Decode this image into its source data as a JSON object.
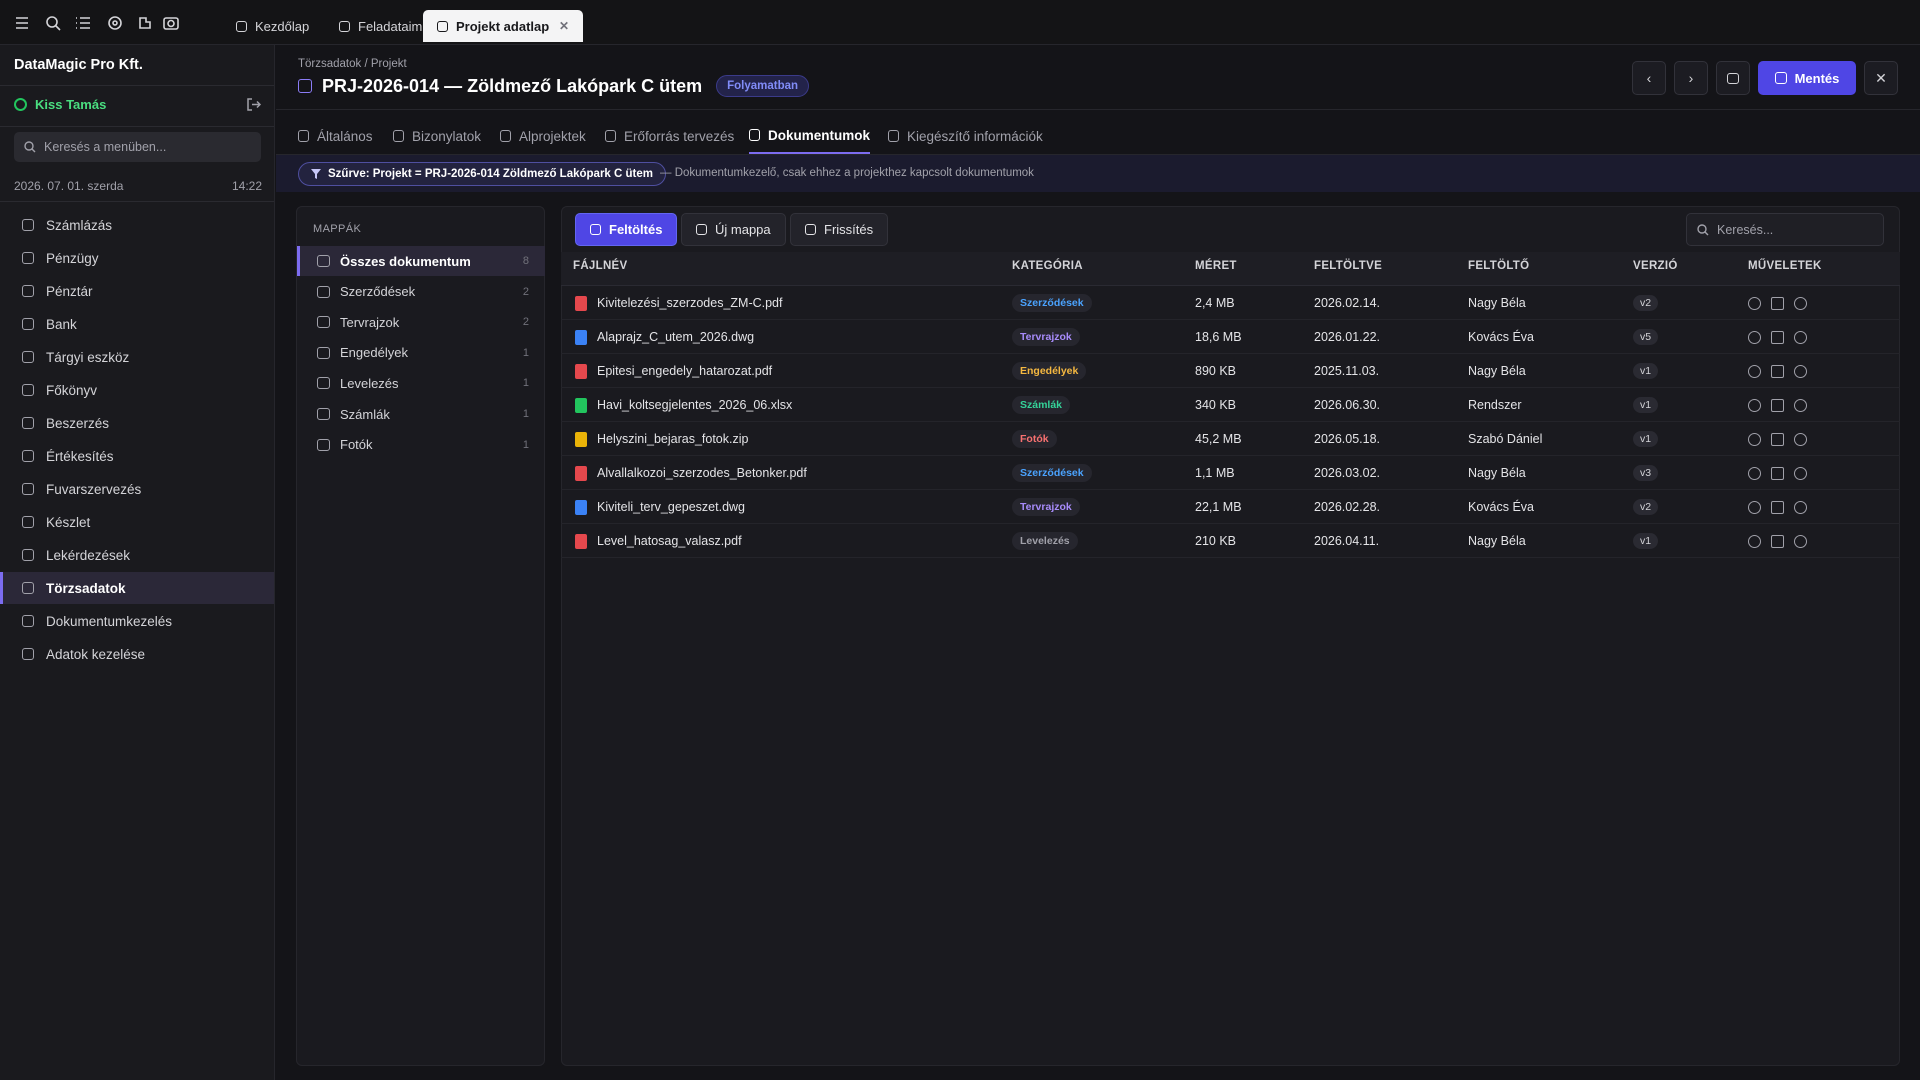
{
  "topbar": {
    "tabs": [
      {
        "label": "Kezdőlap",
        "active": false
      },
      {
        "label": "Feladataim",
        "active": false
      },
      {
        "label": "Projekt adatlap",
        "active": true
      }
    ]
  },
  "sidebar": {
    "company": "DataMagic Pro Kft.",
    "user": "Kiss Tamás",
    "search_placeholder": "Keresés a menüben...",
    "date": "2026. 07. 01. szerda",
    "time": "14:22",
    "menu": [
      {
        "label": "Számlázás",
        "active": false
      },
      {
        "label": "Pénzügy",
        "active": false
      },
      {
        "label": "Pénztár",
        "active": false
      },
      {
        "label": "Bank",
        "active": false
      },
      {
        "label": "Tárgyi eszköz",
        "active": false
      },
      {
        "label": "Főkönyv",
        "active": false
      },
      {
        "label": "Beszerzés",
        "active": false
      },
      {
        "label": "Értékesítés",
        "active": false
      },
      {
        "label": "Fuvarszervezés",
        "active": false
      },
      {
        "label": "Készlet",
        "active": false
      },
      {
        "label": "Lekérdezések",
        "active": false
      },
      {
        "label": "Törzsadatok",
        "active": true
      },
      {
        "label": "Dokumentumkezelés",
        "active": false
      },
      {
        "label": "Adatok kezelése",
        "active": false
      }
    ]
  },
  "header": {
    "breadcrumb": "Törzsadatok / Projekt",
    "title": "PRJ-2026-014 — Zöldmező Lakópark C ütem",
    "status": "Folyamatban",
    "save": "Mentés"
  },
  "tabs": [
    {
      "label": "Általános",
      "active": false
    },
    {
      "label": "Bizonylatok",
      "active": false
    },
    {
      "label": "Alprojektek",
      "active": false
    },
    {
      "label": "Erőforrás tervezés",
      "active": false
    },
    {
      "label": "Dokumentumok",
      "active": true
    },
    {
      "label": "Kiegészítő információk",
      "active": false
    }
  ],
  "filter": {
    "chip": "Szűrve: Projekt = PRJ-2026-014 Zöldmező Lakópark C ütem",
    "note": "— Dokumentumkezelő, csak ehhez a projekthez kapcsolt dokumentumok"
  },
  "folders": {
    "heading": "MAPPÁK",
    "items": [
      {
        "name": "Összes dokumentum",
        "count": 8,
        "active": true
      },
      {
        "name": "Szerződések",
        "count": 2,
        "active": false
      },
      {
        "name": "Tervrajzok",
        "count": 2,
        "active": false
      },
      {
        "name": "Engedélyek",
        "count": 1,
        "active": false
      },
      {
        "name": "Levelezés",
        "count": 1,
        "active": false
      },
      {
        "name": "Számlák",
        "count": 1,
        "active": false
      },
      {
        "name": "Fotók",
        "count": 1,
        "active": false
      }
    ]
  },
  "toolbar": {
    "buttons": [
      "Feltöltés",
      "Új mappa",
      "Frissítés"
    ],
    "search_placeholder": "Keresés..."
  },
  "table": {
    "columns": [
      "FÁJLNÉV",
      "KATEGÓRIA",
      "MÉRET",
      "FELTÖLTVE",
      "FELTÖLTŐ",
      "VERZIÓ",
      "MŰVELETEK"
    ],
    "rows": [
      {
        "file": "Kivitelezési_szerzodes_ZM-C.pdf",
        "icon_color": "#e5484d",
        "category": "Szerződések",
        "category_color": "#4aa3ff",
        "size": "2,4 MB",
        "uploaded": "2026.02.14.",
        "uploader": "Nagy Béla",
        "version": "v2"
      },
      {
        "file": "Alaprajz_C_utem_2026.dwg",
        "icon_color": "#3b82f6",
        "category": "Tervrajzok",
        "category_color": "#a78bfa",
        "size": "18,6 MB",
        "uploaded": "2026.01.22.",
        "uploader": "Kovács Éva",
        "version": "v5"
      },
      {
        "file": "Epitesi_engedely_hatarozat.pdf",
        "icon_color": "#e5484d",
        "category": "Engedélyek",
        "category_color": "#f5b841",
        "size": "890 KB",
        "uploaded": "2025.11.03.",
        "uploader": "Nagy Béla",
        "version": "v1"
      },
      {
        "file": "Havi_koltsegjelentes_2026_06.xlsx",
        "icon_color": "#22c55e",
        "category": "Számlák",
        "category_color": "#34d399",
        "size": "340 KB",
        "uploaded": "2026.06.30.",
        "uploader": "Rendszer",
        "version": "v1"
      },
      {
        "file": "Helyszini_bejaras_fotok.zip",
        "icon_color": "#eab308",
        "category": "Fotók",
        "category_color": "#f87171",
        "size": "45,2 MB",
        "uploaded": "2026.05.18.",
        "uploader": "Szabó Dániel",
        "version": "v1"
      },
      {
        "file": "Alvallalkozoi_szerzodes_Betonker.pdf",
        "icon_color": "#e5484d",
        "category": "Szerződések",
        "category_color": "#4aa3ff",
        "size": "1,1 MB",
        "uploaded": "2026.03.02.",
        "uploader": "Nagy Béla",
        "version": "v3"
      },
      {
        "file": "Kiviteli_terv_gepeszet.dwg",
        "icon_color": "#3b82f6",
        "category": "Tervrajzok",
        "category_color": "#a78bfa",
        "size": "22,1 MB",
        "uploaded": "2026.02.28.",
        "uploader": "Kovács Éva",
        "version": "v2"
      },
      {
        "file": "Level_hatosag_valasz.pdf",
        "icon_color": "#e5484d",
        "category": "Levelezés",
        "category_color": "#a1a1aa",
        "size": "210 KB",
        "uploaded": "2026.04.11.",
        "uploader": "Nagy Béla",
        "version": "v1"
      }
    ]
  }
}
